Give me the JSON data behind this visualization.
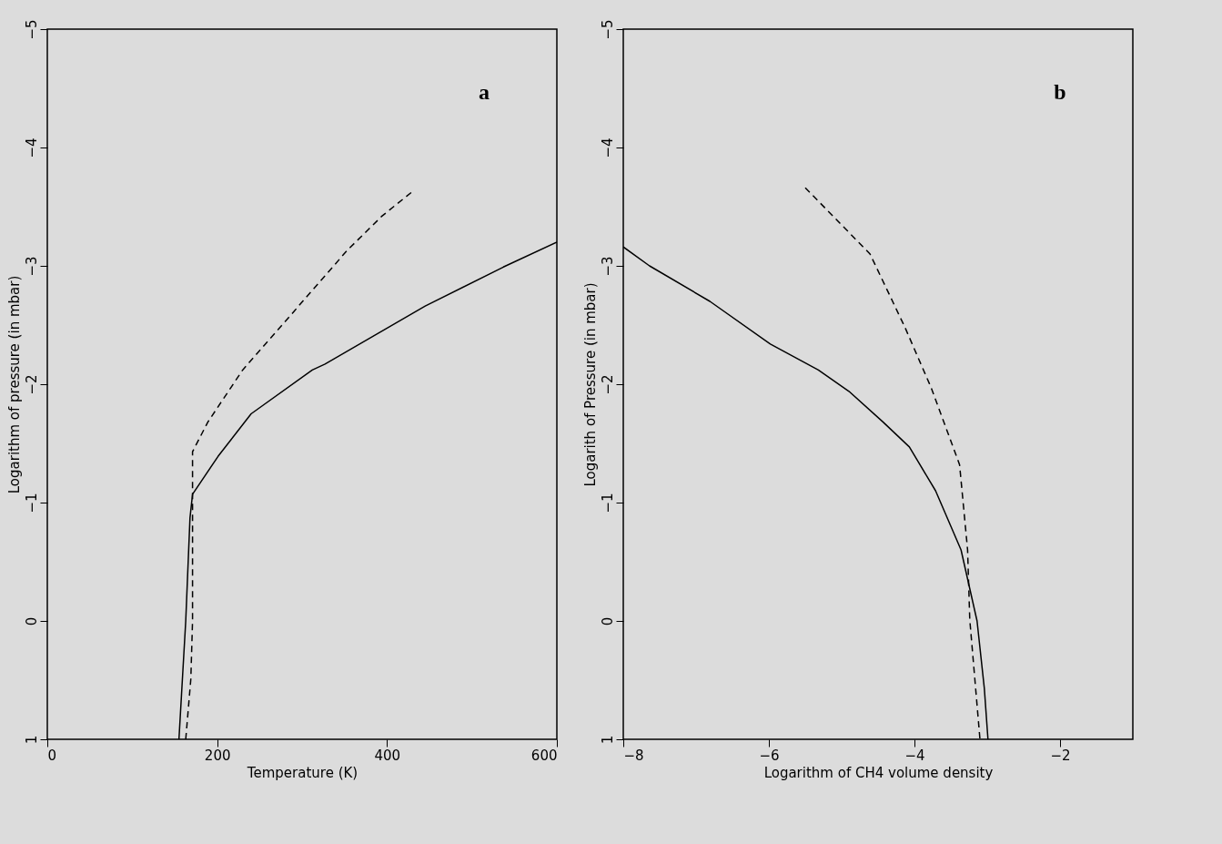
{
  "chart_data": [
    {
      "type": "line",
      "xlabel": "Temperature (K)",
      "ylabel": "Logarithm of pressure (in mbar)",
      "xlim": [
        0,
        600
      ],
      "ylim": [
        1,
        -5
      ],
      "xticks": [
        0,
        200,
        400,
        600
      ],
      "yticks": [
        -5,
        -4,
        -3,
        -2,
        -1,
        0,
        1
      ],
      "grid": false,
      "annotations": [
        "a"
      ],
      "series": [
        {
          "color": "#000000",
          "line_style": "solid",
          "x": [
            155,
            163,
            168,
            171,
            201,
            240,
            312,
            327,
            445,
            537,
            600
          ],
          "values": [
            1,
            0,
            -0.87,
            -1.07,
            -1.39,
            -1.75,
            -2.12,
            -2.17,
            -2.66,
            -2.99,
            -3.2
          ]
        },
        {
          "color": "#000000",
          "line_style": "dashed",
          "x": [
            163,
            169,
            171,
            171,
            189,
            230,
            291,
            353,
            394,
            432
          ],
          "values": [
            1,
            0.49,
            0,
            -1.43,
            -1.68,
            -2.12,
            -2.62,
            -3.13,
            -3.42,
            -3.64
          ]
        }
      ]
    },
    {
      "type": "line",
      "xlabel": "Logarithm of CH4 volume density",
      "ylabel": "Logarith of Pressure (in mbar)",
      "xlim": [
        -8,
        -1
      ],
      "ylim": [
        1,
        -5
      ],
      "xticks": [
        -8,
        -6,
        -4,
        -2
      ],
      "yticks": [
        -5,
        -4,
        -3,
        -2,
        -1,
        0,
        1
      ],
      "grid": false,
      "annotations": [
        "b"
      ],
      "series": [
        {
          "color": "#000000",
          "line_style": "solid",
          "x": [
            -8,
            -7.64,
            -6.81,
            -5.98,
            -5.32,
            -4.9,
            -4.43,
            -4.07,
            -3.71,
            -3.36,
            -3.14,
            -3.04,
            -2.99
          ],
          "values": [
            -3.16,
            -3,
            -2.7,
            -2.34,
            -2.12,
            -1.94,
            -1.68,
            -1.47,
            -1.1,
            -0.6,
            0,
            0.57,
            1
          ]
        },
        {
          "color": "#000000",
          "line_style": "dashed",
          "x": [
            -5.5,
            -4.61,
            -4.13,
            -3.77,
            -3.38,
            -3.27,
            -3.24,
            -3.1
          ],
          "values": [
            -3.66,
            -3.1,
            -2.48,
            -1.97,
            -1.32,
            -0.6,
            -0.01,
            1
          ]
        }
      ]
    }
  ]
}
